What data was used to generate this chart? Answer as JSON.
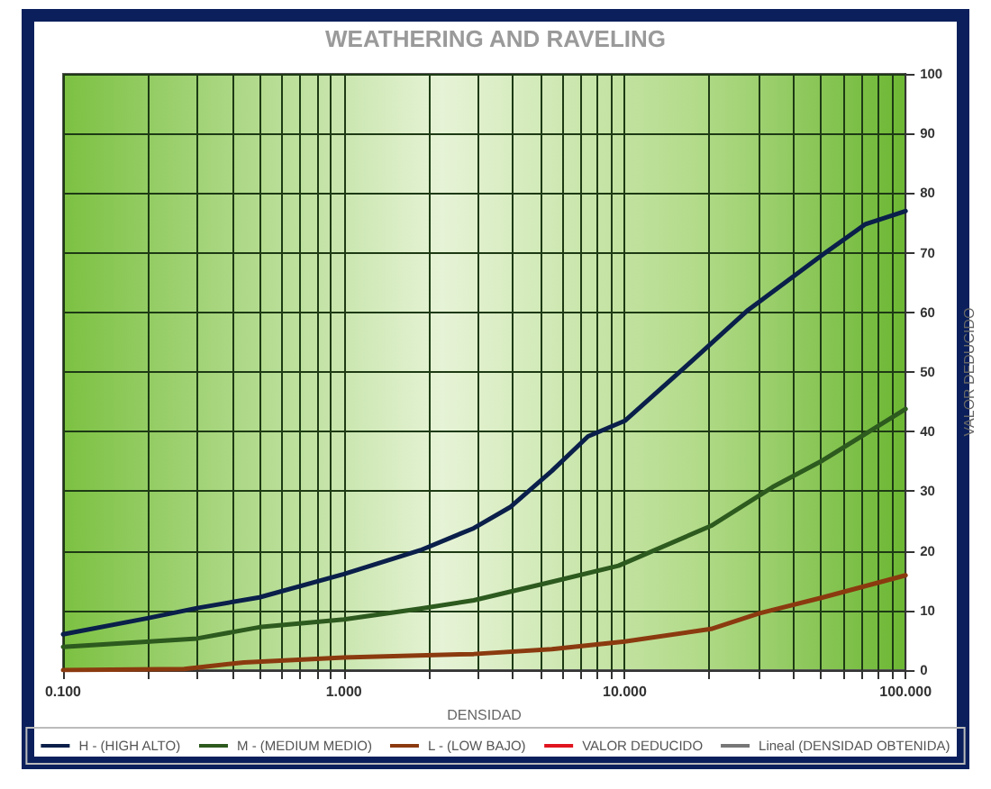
{
  "chart_data": {
    "type": "line",
    "title": "WEATHERING AND RAVELING",
    "xlabel": "DENSIDAD",
    "ylabel": "VALOR DEDUCIDO",
    "log": "x",
    "xlim": [
      0.1,
      100
    ],
    "xticks": [
      {
        "value": 0.1,
        "label": "0.100"
      },
      {
        "value": 0.2,
        "label": null
      },
      {
        "value": 0.3,
        "label": null
      },
      {
        "value": 0.4,
        "label": null
      },
      {
        "value": 0.5,
        "label": null
      },
      {
        "value": 0.6,
        "label": null
      },
      {
        "value": 0.7,
        "label": null
      },
      {
        "value": 0.8,
        "label": null
      },
      {
        "value": 0.9,
        "label": null
      },
      {
        "value": 1,
        "label": "1.000"
      },
      {
        "value": 2,
        "label": null
      },
      {
        "value": 3,
        "label": null
      },
      {
        "value": 4,
        "label": null
      },
      {
        "value": 5,
        "label": null
      },
      {
        "value": 6,
        "label": null
      },
      {
        "value": 7,
        "label": null
      },
      {
        "value": 8,
        "label": null
      },
      {
        "value": 9,
        "label": null
      },
      {
        "value": 10,
        "label": "10.000"
      },
      {
        "value": 20,
        "label": null
      },
      {
        "value": 30,
        "label": null
      },
      {
        "value": 40,
        "label": null
      },
      {
        "value": 50,
        "label": null
      },
      {
        "value": 60,
        "label": null
      },
      {
        "value": 70,
        "label": null
      },
      {
        "value": 80,
        "label": null
      },
      {
        "value": 90,
        "label": null
      },
      {
        "value": 100,
        "label": "100.000"
      }
    ],
    "ylim": [
      0,
      100
    ],
    "yticks": [
      0,
      10,
      20,
      30,
      40,
      50,
      60,
      70,
      80,
      90,
      100
    ],
    "grid": true,
    "legend": "bottom",
    "marker": "none",
    "line_style": "solid",
    "series": [
      {
        "name": "H - (HIGH ALTO)",
        "color": "#0a1f4a",
        "x": [
          0.1,
          0.2,
          0.3,
          0.5,
          1,
          1.87,
          2.9,
          3.9,
          5.5,
          7.4,
          10,
          17.4,
          27.5,
          50.8,
          72,
          100
        ],
        "values": [
          6.0,
          8.7,
          10.4,
          12.2,
          16.1,
          20.1,
          23.8,
          27.3,
          33.4,
          39.2,
          41.8,
          51.9,
          60.4,
          69.7,
          74.8,
          77
        ]
      },
      {
        "name": "M - (MEDIUM MEDIO)",
        "color": "#2d5a1e",
        "x": [
          0.1,
          0.3,
          0.5,
          1,
          1.87,
          2.9,
          5.5,
          9.5,
          20.3,
          33.6,
          50.8,
          100
        ],
        "values": [
          3.9,
          5.3,
          7.2,
          8.5,
          10.3,
          11.7,
          14.8,
          17.5,
          24.2,
          30.7,
          35.2,
          43.8
        ]
      },
      {
        "name": "L - (LOW BAJO)",
        "color": "#8b3a0f",
        "x": [
          0.1,
          0.27,
          0.44,
          1,
          2.9,
          5.5,
          10,
          20.3,
          30,
          50.8,
          100
        ],
        "values": [
          0,
          0.2,
          1.3,
          2.1,
          2.7,
          3.5,
          4.8,
          6.9,
          9.5,
          12.2,
          15.9
        ]
      },
      {
        "name": "VALOR DEDUCIDO",
        "color": "#e0141e"
      },
      {
        "name": "Lineal (DENSIDAD OBTENIDA)",
        "color": "#777777"
      }
    ]
  }
}
